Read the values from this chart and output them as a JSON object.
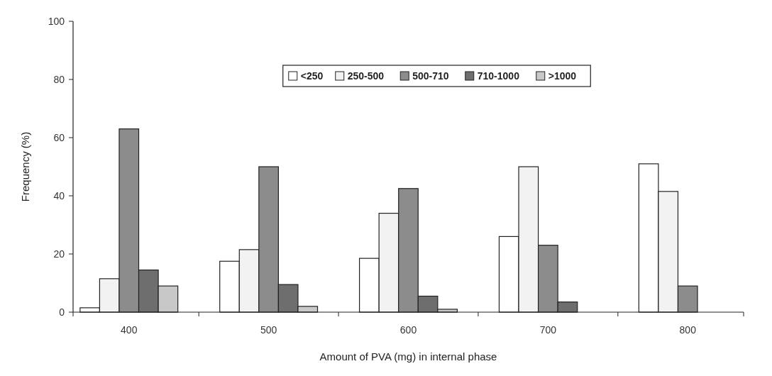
{
  "chart_data": {
    "type": "bar",
    "xlabel": "Amount of PVA  (mg) in internal phase",
    "ylabel": "Frequency (%)",
    "categories": [
      "400",
      "500",
      "600",
      "700",
      "800"
    ],
    "series": [
      {
        "name": "<250",
        "color": "#ffffff",
        "values": [
          1.5,
          17.5,
          18.5,
          26,
          51
        ]
      },
      {
        "name": "250-500",
        "color": "#f2f2f2",
        "values": [
          11.5,
          21.5,
          34,
          50,
          41.5
        ]
      },
      {
        "name": "500-710",
        "color": "#8c8c8c",
        "values": [
          63,
          50,
          42.5,
          23,
          9
        ]
      },
      {
        "name": "710-1000",
        "color": "#6e6e6e",
        "values": [
          14.5,
          9.5,
          5.5,
          3.5,
          null
        ]
      },
      {
        "name": ">1000",
        "color": "#c8c8c8",
        "values": [
          9,
          2,
          1,
          null,
          null
        ]
      }
    ],
    "ylim": [
      0,
      100
    ],
    "yticks": [
      0,
      20,
      40,
      60,
      80,
      100
    ],
    "legend": "top",
    "grid": false
  }
}
